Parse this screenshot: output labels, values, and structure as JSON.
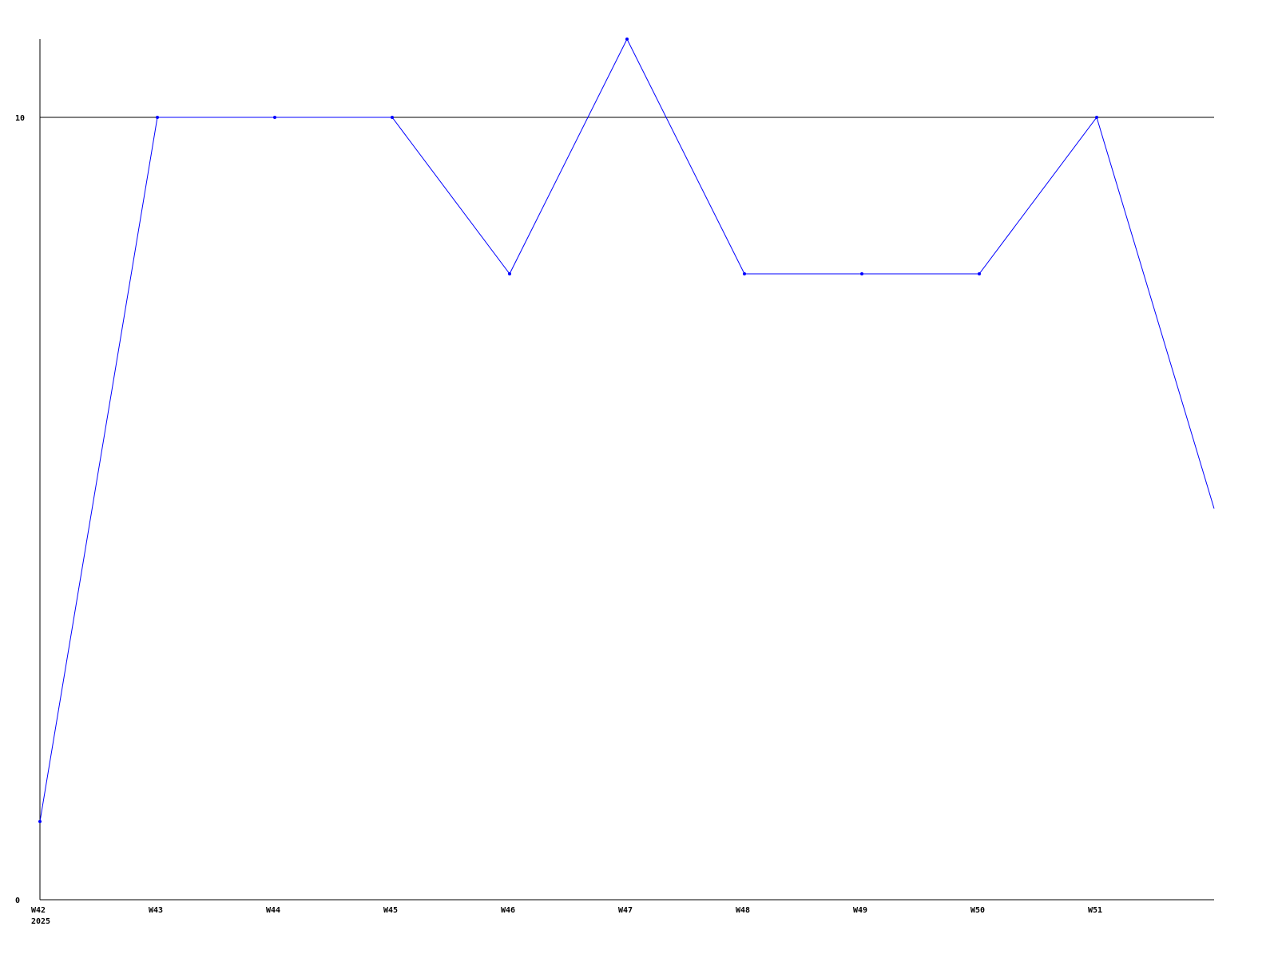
{
  "chart_data": {
    "type": "line",
    "x": [
      "W42",
      "W43",
      "W44",
      "W45",
      "W46",
      "W47",
      "W48",
      "W49",
      "W50",
      "W51",
      ""
    ],
    "x_secondary_label": "2025",
    "series": [
      {
        "values": [
          1,
          10,
          10,
          10,
          8,
          11,
          8,
          8,
          8,
          10,
          5
        ]
      }
    ],
    "y_ticks": [
      0,
      10
    ],
    "y_tick_labels": [
      "0",
      "10"
    ],
    "ylim": [
      0,
      11
    ],
    "reference_lines": [
      10
    ],
    "grid": false,
    "legend": "none",
    "title": "",
    "xlabel": "",
    "ylabel": "",
    "colors": {
      "series": "#0000ff",
      "axis": "#000000",
      "reference_line": "#000000",
      "background": "#ffffff"
    }
  }
}
